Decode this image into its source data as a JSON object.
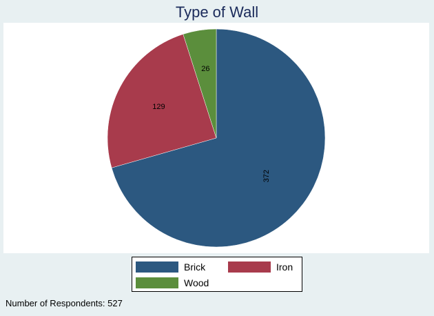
{
  "chart_data": {
    "type": "pie",
    "title": "Type of Wall",
    "slices": [
      {
        "name": "Brick",
        "value": 372,
        "color": "#2c5880"
      },
      {
        "name": "Iron",
        "value": 129,
        "color": "#a83b4c"
      },
      {
        "name": "Wood",
        "value": 26,
        "color": "#5b8e3c"
      }
    ],
    "start_angle": "12 o'clock",
    "direction": "clockwise",
    "legend_position": "bottom",
    "note": "Number of Respondents: 527"
  }
}
